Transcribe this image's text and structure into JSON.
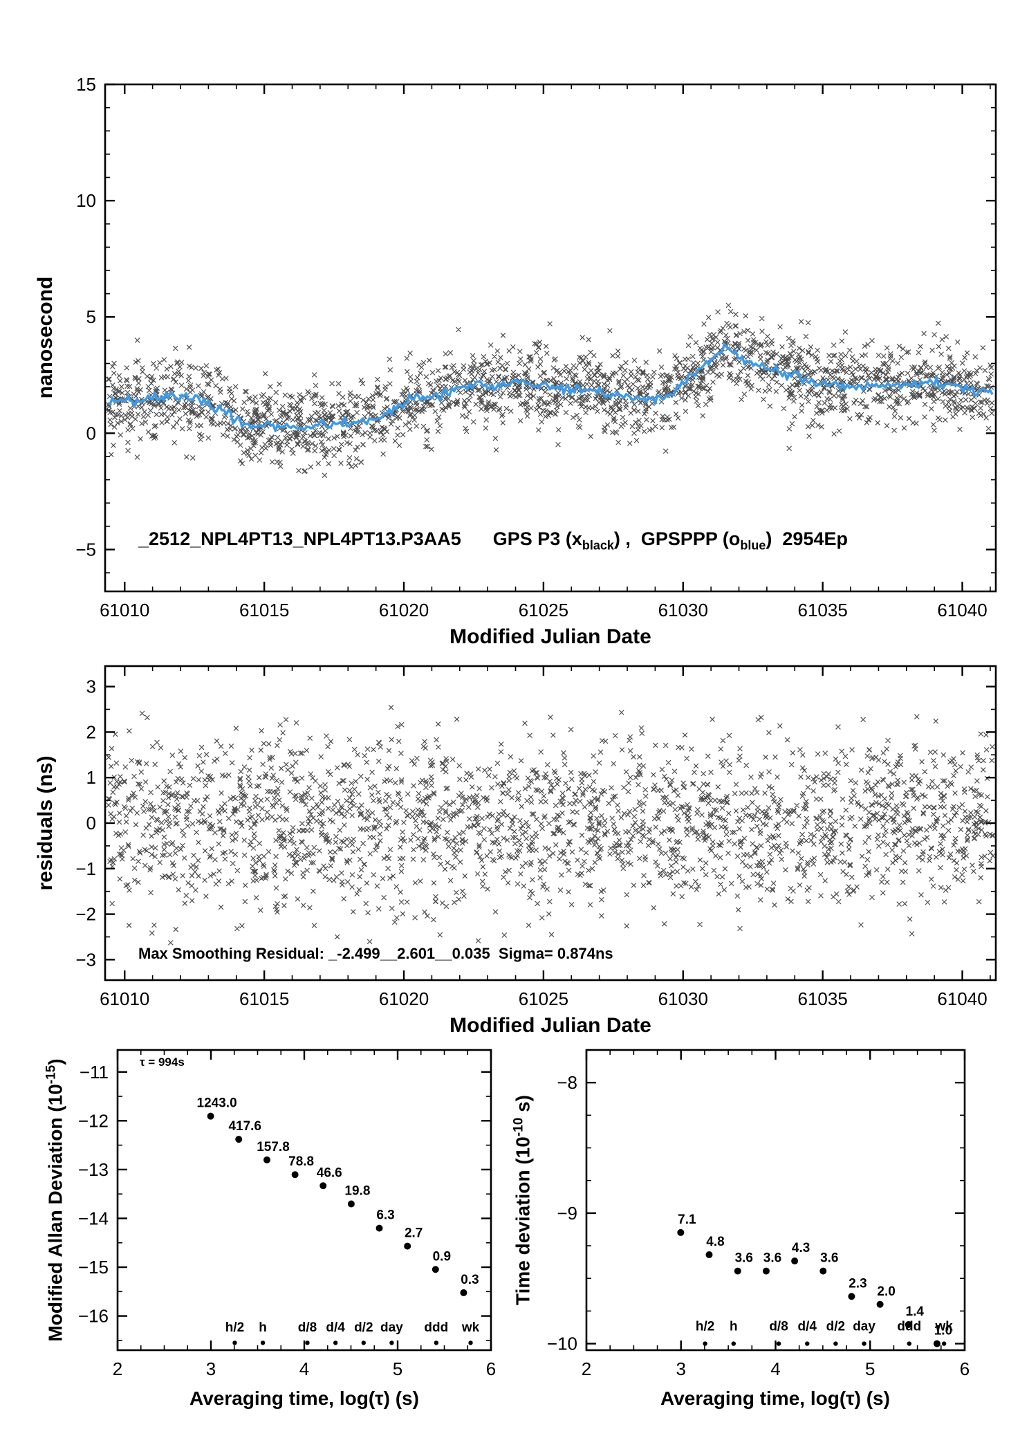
{
  "page": {
    "background": "#ffffff"
  },
  "colors": {
    "axis": "#000000",
    "scatter_black": "#1c1c1c",
    "trend_blue": "#3d9be9",
    "label_red": "#ee1111"
  },
  "labels": {
    "top_ylabel": "nanosecond",
    "mjd_xlabel": "Modified Julian Date",
    "mid_ylabel": "residuals (ns)",
    "avg_xlabel": "Averaging time, log(τ) (s)",
    "mdev_ylabel_main": "Modified Allan Deviation (10",
    "mdev_ylabel_exp": "-15",
    "mdev_ylabel_close": ")",
    "tdev_ylabel_main": "Time deviation (10",
    "tdev_ylabel_exp": "-10",
    "tdev_ylabel_close": " s)"
  },
  "annotations": {
    "top_title": {
      "p1": "_2512_NPL4PT13_NPL4PT13.P3AA5",
      "p2": "GPS P3 (x",
      "sub1": "black",
      "p3": ") ,  GPSPPP (o",
      "sub2": "blue",
      "p4": ")  2954Ep"
    },
    "mid_note": "Max Smoothing Residual: _-2.499__2.601__0.035  Sigma= 0.874ns",
    "tau_note": "τ = 994s"
  },
  "chart_data": [
    {
      "id": "gps-comparison",
      "type": "scatter",
      "title": "_2512_NPL4PT13_NPL4PT13.P3AA5 GPS P3 (x black), GPSPPP (o blue) 2954Ep",
      "xlabel": "Modified Julian Date",
      "ylabel": "nanosecond",
      "xlim": [
        61009.3,
        61041.2
      ],
      "ylim": [
        -6.8,
        15
      ],
      "xticks": [
        61010,
        61015,
        61020,
        61025,
        61030,
        61035,
        61040
      ],
      "yticks": [
        -5,
        0,
        5,
        10,
        15
      ],
      "x_minor": 1,
      "y_minor": 1,
      "series": [
        {
          "name": "GPS P3",
          "marker": "x",
          "color": "#1c1c1c",
          "n_points": 2300,
          "noise_sigma": 0.85,
          "seed": 13
        },
        {
          "name": "GPSPPP smoothed",
          "marker": "line",
          "color": "#3d9be9",
          "noise_sigma": 0.1,
          "step": 0.08,
          "width": 3.5,
          "seed": 77
        }
      ],
      "trend": [
        [
          61009.4,
          1.3
        ],
        [
          61010,
          1.4
        ],
        [
          61010.5,
          1.45
        ],
        [
          61011,
          1.5
        ],
        [
          61011.5,
          1.55
        ],
        [
          61012,
          1.6
        ],
        [
          61012.5,
          1.55
        ],
        [
          61013,
          1.3
        ],
        [
          61013.5,
          0.9
        ],
        [
          61014,
          0.55
        ],
        [
          61014.5,
          0.4
        ],
        [
          61015,
          0.32
        ],
        [
          61015.5,
          0.25
        ],
        [
          61016,
          0.3
        ],
        [
          61016.5,
          0.2
        ],
        [
          61017,
          0.35
        ],
        [
          61017.5,
          0.3
        ],
        [
          61018,
          0.45
        ],
        [
          61018.5,
          0.5
        ],
        [
          61019,
          0.6
        ],
        [
          61019.5,
          0.9
        ],
        [
          61020,
          1.3
        ],
        [
          61020.5,
          1.5
        ],
        [
          61021,
          1.55
        ],
        [
          61021.5,
          1.8
        ],
        [
          61022,
          2.0
        ],
        [
          61022.5,
          2.1
        ],
        [
          61023,
          2.0
        ],
        [
          61023.5,
          2.05
        ],
        [
          61024,
          2.15
        ],
        [
          61024.5,
          2.1
        ],
        [
          61025,
          2.0
        ],
        [
          61025.5,
          1.95
        ],
        [
          61026,
          1.9
        ],
        [
          61026.5,
          1.8
        ],
        [
          61027,
          1.75
        ],
        [
          61027.5,
          1.65
        ],
        [
          61028,
          1.6
        ],
        [
          61028.5,
          1.55
        ],
        [
          61029,
          1.5
        ],
        [
          61029.5,
          1.6
        ],
        [
          61030,
          2.2
        ],
        [
          61030.5,
          2.6
        ],
        [
          61031,
          3.1
        ],
        [
          61031.5,
          3.7
        ],
        [
          61032,
          3.3
        ],
        [
          61032.5,
          3.0
        ],
        [
          61033,
          2.8
        ],
        [
          61033.5,
          2.6
        ],
        [
          61034,
          2.5
        ],
        [
          61034.5,
          2.3
        ],
        [
          61035,
          2.1
        ],
        [
          61035.5,
          2.0
        ],
        [
          61036,
          1.95
        ],
        [
          61036.5,
          2.0
        ],
        [
          61037,
          2.05
        ],
        [
          61037.5,
          2.1
        ],
        [
          61038,
          2.1
        ],
        [
          61038.5,
          2.15
        ],
        [
          61039,
          2.2
        ],
        [
          61039.5,
          2.1
        ],
        [
          61040,
          1.95
        ],
        [
          61040.5,
          1.85
        ],
        [
          61041.1,
          1.8
        ]
      ]
    },
    {
      "id": "residuals",
      "type": "scatter",
      "xlabel": "Modified Julian Date",
      "ylabel": "residuals (ns)",
      "xlim": [
        61009.3,
        61041.2
      ],
      "ylim": [
        -3.45,
        3.45
      ],
      "xticks": [
        61010,
        61015,
        61020,
        61025,
        61030,
        61035,
        61040
      ],
      "yticks": [
        -3,
        -2,
        -1,
        0,
        1,
        2,
        3
      ],
      "x_minor": 1,
      "y_minor": 0.5,
      "series": [
        {
          "name": "smoothing residuals",
          "marker": "x",
          "color": "#1c1c1c",
          "n_points": 2300,
          "noise_sigma": 0.92,
          "seed": 29,
          "clip": 2.7,
          "flat": true
        }
      ],
      "stats": {
        "residual_min": -2.499,
        "residual_max": 2.601,
        "residual_mean": 0.035,
        "sigma_ns": 0.874
      }
    },
    {
      "id": "mdev",
      "type": "scatter",
      "xlabel": "Averaging time, log(τ) (s)",
      "ylabel": "Modified Allan Deviation (10^-15)",
      "xlim": [
        2,
        6
      ],
      "ylim": [
        -16.7,
        -10.55
      ],
      "xticks": [
        2,
        3,
        4,
        5,
        6
      ],
      "yticks": [
        -16,
        -15,
        -14,
        -13,
        -12,
        -11
      ],
      "x_minor": 0.25,
      "y_minor": 0.5,
      "unit_exp": -15,
      "tau_note": "τ = 994s",
      "points": [
        {
          "logtau": 2.997,
          "value": 1243.0
        },
        {
          "logtau": 3.298,
          "value": 417.6
        },
        {
          "logtau": 3.6,
          "value": 157.8
        },
        {
          "logtau": 3.901,
          "value": 78.8
        },
        {
          "logtau": 4.202,
          "value": 46.6
        },
        {
          "logtau": 4.503,
          "value": 19.8
        },
        {
          "logtau": 4.804,
          "value": 6.3
        },
        {
          "logtau": 5.105,
          "value": 2.7
        },
        {
          "logtau": 5.406,
          "value": 0.9
        },
        {
          "logtau": 5.707,
          "value": 0.3
        }
      ],
      "time_markers": [
        {
          "label": "h/2",
          "logtau": 3.2553
        },
        {
          "label": "h",
          "logtau": 3.5563
        },
        {
          "label": "d/8",
          "logtau": 4.0334
        },
        {
          "label": "d/4",
          "logtau": 4.3345
        },
        {
          "label": "d/2",
          "logtau": 4.6355
        },
        {
          "label": "day",
          "logtau": 4.9365
        },
        {
          "label": "ddd",
          "logtau": 5.4137
        },
        {
          "label": "wk",
          "logtau": 5.7817
        }
      ],
      "marker_label_y": -16.32,
      "marker_dot_y": -16.55
    },
    {
      "id": "tdev",
      "type": "scatter",
      "xlabel": "Averaging time, log(τ) (s)",
      "ylabel": "Time deviation (10^-10 s)",
      "xlim": [
        2,
        6
      ],
      "ylim": [
        -10.05,
        -7.75
      ],
      "xticks": [
        2,
        3,
        4,
        5,
        6
      ],
      "yticks": [
        -10,
        -9,
        -8
      ],
      "x_minor": 0.25,
      "y_minor": 0.25,
      "unit_exp": -10,
      "points": [
        {
          "logtau": 2.997,
          "value": 7.1
        },
        {
          "logtau": 3.298,
          "value": 4.8
        },
        {
          "logtau": 3.6,
          "value": 3.6
        },
        {
          "logtau": 3.901,
          "value": 3.6
        },
        {
          "logtau": 4.202,
          "value": 4.3
        },
        {
          "logtau": 4.503,
          "value": 3.6
        },
        {
          "logtau": 4.804,
          "value": 2.3
        },
        {
          "logtau": 5.105,
          "value": 2.0
        },
        {
          "logtau": 5.406,
          "value": 1.4
        },
        {
          "logtau": 5.707,
          "value": 1.0
        }
      ],
      "time_markers": [
        {
          "label": "h/2",
          "logtau": 3.2553
        },
        {
          "label": "h",
          "logtau": 3.5563
        },
        {
          "label": "d/8",
          "logtau": 4.0334
        },
        {
          "label": "d/4",
          "logtau": 4.3345
        },
        {
          "label": "d/2",
          "logtau": 4.6355
        },
        {
          "label": "day",
          "logtau": 4.9365
        },
        {
          "label": "ddd",
          "logtau": 5.4137
        },
        {
          "label": "wk",
          "logtau": 5.7817
        }
      ],
      "marker_label_y": -9.9,
      "marker_dot_y": -10.0
    }
  ]
}
